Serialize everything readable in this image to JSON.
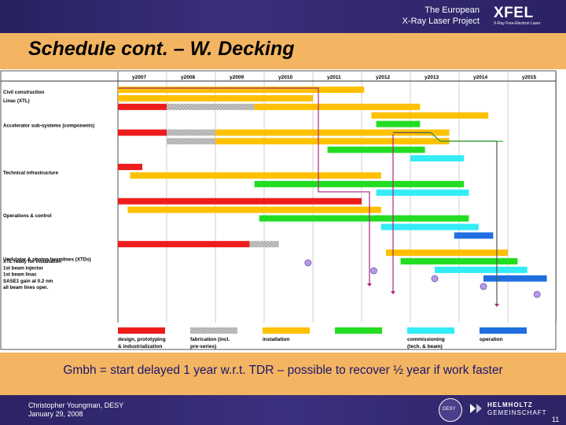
{
  "header": {
    "org_line1": "The European",
    "org_line2": "X-Ray Laser Project",
    "logo": "XFEL",
    "logo_sub": "X-Ray Free-Electron Laser",
    "bar_color": "#2e2670"
  },
  "slide": {
    "title": "Schedule cont. – W. Decking",
    "band_color": "#f3b561"
  },
  "gantt": {
    "years": [
      "y2007",
      "y2008",
      "y2009",
      "y2010",
      "y2011",
      "y2012",
      "y2013",
      "y2014",
      "y2015"
    ],
    "groups": [
      "Civil construction",
      "Linac (XTL)",
      "Accelerator sub-systems (components)",
      "Technical infrastructure",
      "Operations & control",
      "Undulator & photon beamlines (XTDs)"
    ],
    "milestones": [
      "XTL ready for installation",
      "1st beam injector",
      "1st beam linac",
      "SASE1 gain at 0.2 nm",
      "all beam lines oper."
    ],
    "legend": [
      {
        "line1": "design, prototyping",
        "line2": "& industrialization",
        "color": "#ee1c1c",
        "pattern": false
      },
      {
        "line1": "fabrication (incl.",
        "line2": "pre-series)",
        "color": "#bdbdbd",
        "pattern": true
      },
      {
        "line1": "installation",
        "line2": "",
        "color": "#ffc000",
        "pattern": false
      },
      {
        "line1": "",
        "line2": "",
        "color": "#22dd22",
        "pattern": false
      },
      {
        "line1": "commissioning",
        "line2": "(tech. & beam)",
        "color": "#33ecf5",
        "pattern": false
      },
      {
        "line1": "operation",
        "line2": "",
        "color": "#1f6fe0",
        "pattern": false
      }
    ],
    "colors": {
      "design": "#ee1c1c",
      "fabrication": "#bdbdbd",
      "installation": "#ffc000",
      "green": "#22dd22",
      "commissioning": "#33ecf5",
      "operation": "#1f6fe0",
      "grid": "#bbbbbb",
      "arrow": "#a8287a",
      "milestone": "#b79be8"
    },
    "bars": [
      {
        "row": 0,
        "start": 2007.0,
        "end": 2012.05,
        "type": "installation"
      },
      {
        "row": 1,
        "start": 2007.0,
        "end": 2011.0,
        "type": "installation"
      },
      {
        "row": 2,
        "start": 2007.0,
        "end": 2008.0,
        "type": "design"
      },
      {
        "row": 2,
        "start": 2008.0,
        "end": 2009.8,
        "type": "fabrication"
      },
      {
        "row": 2,
        "start": 2009.8,
        "end": 2013.2,
        "type": "installation"
      },
      {
        "row": 3,
        "start": 2012.2,
        "end": 2014.6,
        "type": "installation"
      },
      {
        "row": 4,
        "start": 2012.3,
        "end": 2013.2,
        "type": "green"
      },
      {
        "row": 5,
        "start": 2007.0,
        "end": 2008.0,
        "type": "design"
      },
      {
        "row": 5,
        "start": 2008.0,
        "end": 2009.0,
        "type": "fabrication"
      },
      {
        "row": 5,
        "start": 2009.0,
        "end": 2013.8,
        "type": "installation"
      },
      {
        "row": 6,
        "start": 2008.0,
        "end": 2009.0,
        "type": "fabrication"
      },
      {
        "row": 6,
        "start": 2009.0,
        "end": 2013.8,
        "type": "installation"
      },
      {
        "row": 7,
        "start": 2011.3,
        "end": 2013.3,
        "type": "green"
      },
      {
        "row": 8,
        "start": 2013.0,
        "end": 2014.1,
        "type": "commissioning"
      },
      {
        "row": 9,
        "start": 2007.0,
        "end": 2007.5,
        "type": "design"
      },
      {
        "row": 10,
        "start": 2007.25,
        "end": 2012.4,
        "type": "installation"
      },
      {
        "row": 11,
        "start": 2009.8,
        "end": 2014.1,
        "type": "green"
      },
      {
        "row": 12,
        "start": 2012.3,
        "end": 2014.2,
        "type": "commissioning"
      },
      {
        "row": 13,
        "start": 2007.0,
        "end": 2012.0,
        "type": "design"
      },
      {
        "row": 14,
        "start": 2007.2,
        "end": 2012.4,
        "type": "installation"
      },
      {
        "row": 15,
        "start": 2009.9,
        "end": 2014.2,
        "type": "green"
      },
      {
        "row": 16,
        "start": 2012.4,
        "end": 2014.4,
        "type": "commissioning"
      },
      {
        "row": 17,
        "start": 2013.9,
        "end": 2014.7,
        "type": "operation"
      },
      {
        "row": 18,
        "start": 2007.0,
        "end": 2009.7,
        "type": "design"
      },
      {
        "row": 18,
        "start": 2009.7,
        "end": 2010.3,
        "type": "fabrication"
      },
      {
        "row": 19,
        "start": 2012.5,
        "end": 2015.0,
        "type": "installation"
      },
      {
        "row": 20,
        "start": 2012.8,
        "end": 2015.2,
        "type": "green"
      },
      {
        "row": 21,
        "start": 2013.5,
        "end": 2015.4,
        "type": "commissioning"
      },
      {
        "row": 22,
        "start": 2014.5,
        "end": 2015.8,
        "type": "operation"
      }
    ],
    "milestone_points": [
      {
        "row": 23,
        "x": 2010.9
      },
      {
        "row": 24,
        "x": 2012.25
      },
      {
        "row": 25,
        "x": 2013.5
      },
      {
        "row": 26,
        "x": 2014.5
      },
      {
        "row": 27,
        "x": 2015.6
      }
    ]
  },
  "note": "Gmbh = start delayed 1 year w.r.t. TDR – possible to recover ½ year if work faster",
  "footer": {
    "presenter": "Christopher Youngman, DESY",
    "date": "January 29, 2008",
    "page": "11",
    "desy_label": "DESY",
    "helm_line1": "HELMHOLTZ",
    "helm_line2": "GEMEINSCHAFT"
  }
}
